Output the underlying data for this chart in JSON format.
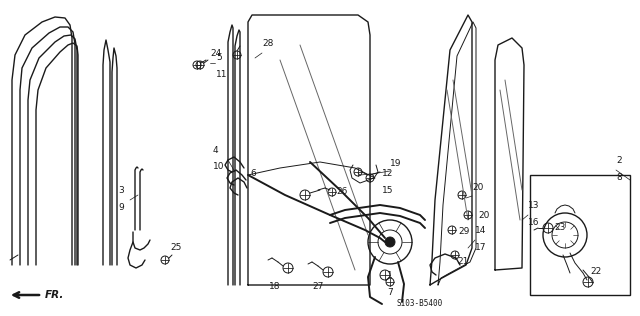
{
  "bg_color": "#ffffff",
  "diagram_code": "S103-B5400",
  "line_color": "#1a1a1a",
  "label_fontsize": 6.5
}
